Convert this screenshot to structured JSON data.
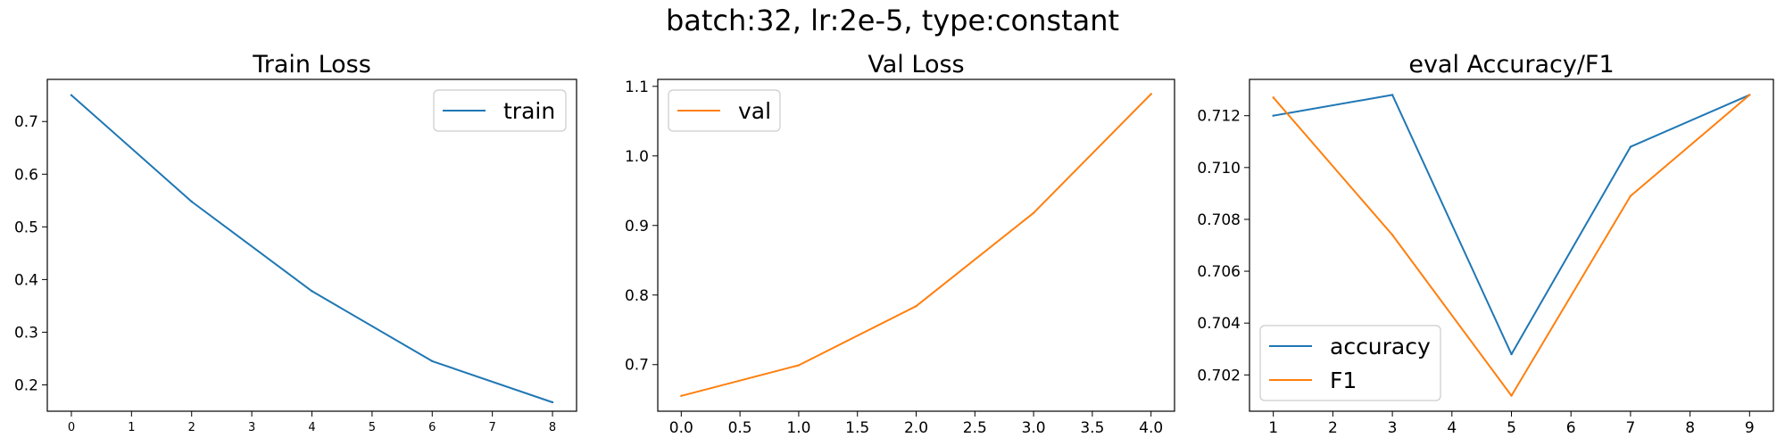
{
  "figure_title": "batch:32, lr:2e-5, type:constant",
  "colors": {
    "blue": "#1f77b4",
    "orange": "#ff7f0e"
  },
  "chart_data": [
    {
      "type": "line",
      "title": "Train Loss",
      "xlabel": "",
      "ylabel": "",
      "xlim": [
        -0.4,
        8.4
      ],
      "ylim": [
        0.15,
        0.78
      ],
      "xticks": [
        0,
        1,
        2,
        3,
        4,
        5,
        6,
        7,
        8
      ],
      "yticks": [
        0.2,
        0.3,
        0.4,
        0.5,
        0.6,
        0.7
      ],
      "xtick_labels": [
        "0",
        "1",
        "2",
        "3",
        "4",
        "5",
        "6",
        "7",
        "8"
      ],
      "ytick_labels": [
        "0.2",
        "0.3",
        "0.4",
        "0.5",
        "0.6",
        "0.7"
      ],
      "legend": "upper right",
      "series": [
        {
          "name": "train",
          "color": "#1f77b4",
          "x": [
            0,
            2,
            4,
            6,
            8
          ],
          "y": [
            0.75,
            0.548,
            0.378,
            0.245,
            0.167
          ]
        }
      ]
    },
    {
      "type": "line",
      "title": "Val Loss",
      "xlabel": "",
      "ylabel": "",
      "xlim": [
        -0.2,
        4.2
      ],
      "ylim": [
        0.633,
        1.11
      ],
      "xticks": [
        0,
        0.5,
        1,
        1.5,
        2,
        2.5,
        3,
        3.5,
        4
      ],
      "yticks": [
        0.7,
        0.8,
        0.9,
        1.0,
        1.1
      ],
      "xtick_labels": [
        "0.0",
        "0.5",
        "1.0",
        "1.5",
        "2.0",
        "2.5",
        "3.0",
        "3.5",
        "4.0"
      ],
      "ytick_labels": [
        "0.7",
        "0.8",
        "0.9",
        "1.0",
        "1.1"
      ],
      "legend": "upper left",
      "series": [
        {
          "name": "val",
          "color": "#ff7f0e",
          "x": [
            0,
            1,
            2,
            3,
            4
          ],
          "y": [
            0.655,
            0.699,
            0.784,
            0.918,
            1.089
          ]
        }
      ]
    },
    {
      "type": "line",
      "title": "eval Accuracy/F1",
      "xlabel": "",
      "ylabel": "",
      "xlim": [
        0.6,
        9.4
      ],
      "ylim": [
        0.7006,
        0.7134
      ],
      "xticks": [
        1,
        2,
        3,
        4,
        5,
        6,
        7,
        8,
        9
      ],
      "yticks": [
        0.702,
        0.704,
        0.706,
        0.708,
        0.71,
        0.712
      ],
      "xtick_labels": [
        "1",
        "2",
        "3",
        "4",
        "5",
        "6",
        "7",
        "8",
        "9"
      ],
      "ytick_labels": [
        "0.702",
        "0.704",
        "0.706",
        "0.708",
        "0.710",
        "0.712"
      ],
      "legend": "lower left",
      "series": [
        {
          "name": "accuracy",
          "color": "#1f77b4",
          "x": [
            1,
            3,
            5,
            7,
            9
          ],
          "y": [
            0.712,
            0.7128,
            0.7028,
            0.7108,
            0.7128
          ]
        },
        {
          "name": "F1",
          "color": "#ff7f0e",
          "x": [
            1,
            3,
            5,
            7,
            9
          ],
          "y": [
            0.7127,
            0.7074,
            0.7012,
            0.7089,
            0.7128
          ]
        }
      ]
    }
  ]
}
